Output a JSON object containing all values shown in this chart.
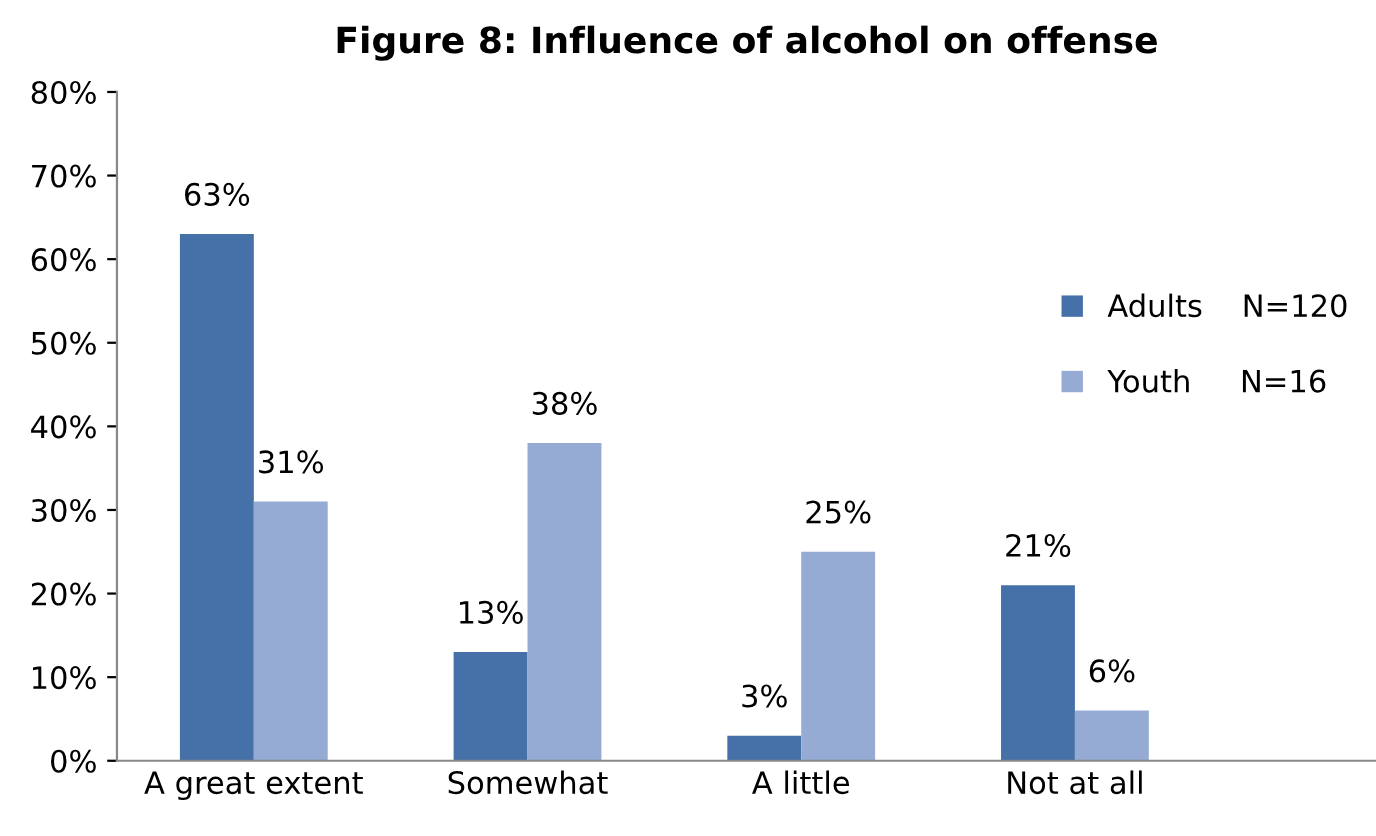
{
  "chart_data": {
    "type": "bar",
    "title": "Figure 8: Influence of alcohol on offense",
    "categories": [
      "A great extent",
      "Somewhat",
      "A little",
      "Not at all"
    ],
    "series": [
      {
        "name": "Adults    N=120",
        "color": "#4670a8",
        "values": [
          63,
          13,
          3,
          21
        ],
        "value_labels": [
          "63%",
          "13%",
          "3%",
          "21%"
        ]
      },
      {
        "name": "Youth     N=16",
        "color": "#95abd4",
        "values": [
          31,
          38,
          25,
          6
        ],
        "value_labels": [
          "31%",
          "38%",
          "25%",
          "6%"
        ]
      }
    ],
    "ylim": [
      0,
      80
    ],
    "yticks": [
      {
        "value": 0,
        "label": "0%"
      },
      {
        "value": 10,
        "label": "10%"
      },
      {
        "value": 20,
        "label": "20%"
      },
      {
        "value": 30,
        "label": "30%"
      },
      {
        "value": 40,
        "label": "40%"
      },
      {
        "value": 50,
        "label": "50%"
      },
      {
        "value": 60,
        "label": "60%"
      },
      {
        "value": 70,
        "label": "70%"
      },
      {
        "value": 80,
        "label": "80%"
      }
    ],
    "grid": false,
    "legend": "right"
  }
}
